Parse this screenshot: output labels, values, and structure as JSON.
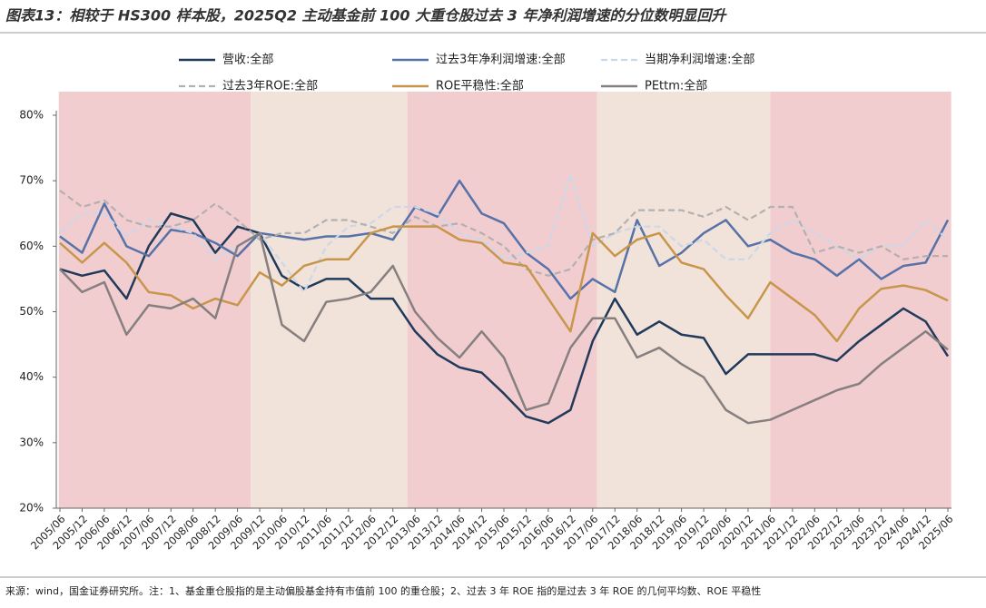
{
  "chart_data": {
    "type": "line",
    "title": "图表13：相较于 HS300 样本股，2025Q2 主动基金前 100 大重仓股过去 3 年净利润增速的分位数明显回升",
    "source": "来源：wind，国金证券研究所。注：1、基金重仓股指的是主动偏股基金持有市值前 100 的重仓股；2、过去 3 年 ROE 指的是过去 3 年 ROE 的几何平均数、ROE 平稳性",
    "categories": [
      "2005/06",
      "2005/12",
      "2006/06",
      "2006/12",
      "2007/06",
      "2007/12",
      "2008/06",
      "2008/12",
      "2009/06",
      "2009/12",
      "2010/06",
      "2010/12",
      "2011/06",
      "2011/12",
      "2012/06",
      "2012/12",
      "2013/06",
      "2013/12",
      "2014/06",
      "2014/12",
      "2015/06",
      "2015/12",
      "2016/06",
      "2016/12",
      "2017/06",
      "2017/12",
      "2018/06",
      "2018/12",
      "2019/06",
      "2019/12",
      "2020/06",
      "2020/12",
      "2021/06",
      "2021/12",
      "2022/06",
      "2022/12",
      "2023/06",
      "2023/12",
      "2024/06",
      "2024/12",
      "2025/06"
    ],
    "ylim": [
      20,
      80
    ],
    "yticks": [
      {
        "value": 20,
        "label": "20%"
      },
      {
        "value": 30,
        "label": "30%"
      },
      {
        "value": 40,
        "label": "40%"
      },
      {
        "value": 50,
        "label": "50%"
      },
      {
        "value": 60,
        "label": "60%"
      },
      {
        "value": 70,
        "label": "70%"
      },
      {
        "value": 80,
        "label": "80%"
      }
    ],
    "series": [
      {
        "name": "营收:全部",
        "color": "#1f3a5a",
        "dash": false,
        "values": [
          56.5,
          55.5,
          56.3,
          52,
          60,
          65,
          64,
          59,
          63,
          62,
          55.5,
          53.5,
          55,
          55,
          52,
          52,
          47,
          43.5,
          41.5,
          40.7,
          37.5,
          34,
          33,
          35,
          45.5,
          52,
          46.5,
          48.5,
          46.5,
          46,
          40.5,
          43.5,
          43.5,
          43.5,
          43.5,
          42.5,
          45.5,
          48,
          50.5,
          48.5,
          43.2
        ]
      },
      {
        "name": "过去3年净利润增速:全部",
        "color": "#5672a8",
        "dash": false,
        "values": [
          61.5,
          59,
          66.5,
          60,
          58.5,
          62.5,
          62,
          60.5,
          58.5,
          62,
          61.5,
          61,
          61.5,
          61.5,
          62,
          61,
          66,
          64.5,
          70,
          65,
          63.5,
          59,
          56.5,
          52,
          55,
          53,
          64,
          57,
          59,
          62,
          64,
          60,
          61,
          59,
          58,
          55.5,
          58,
          55,
          57,
          57.5,
          64
        ]
      },
      {
        "name": "当期净利润增速:全部",
        "color": "#c9d8ea",
        "dash": true,
        "values": [
          62,
          65,
          65,
          61.5,
          64,
          63,
          62,
          58,
          60,
          62,
          57.5,
          53,
          60,
          63,
          63.5,
          66,
          66,
          65,
          62,
          61,
          58,
          59,
          60,
          71,
          60,
          62,
          63,
          63,
          60,
          61,
          58,
          58,
          62,
          64,
          62,
          60,
          58,
          60,
          60,
          64,
          61
        ]
      },
      {
        "name": "过去3年ROE:全部",
        "color": "#b3b0b0",
        "dash": true,
        "values": [
          68.5,
          66,
          67,
          64,
          63,
          63,
          64,
          66.5,
          64,
          61,
          62,
          62,
          64,
          64,
          63,
          62,
          64.5,
          63,
          63.5,
          62,
          60,
          56.5,
          55.5,
          56.5,
          61,
          62,
          65.5,
          65.5,
          65.5,
          64.5,
          66,
          64,
          66,
          66,
          59,
          60,
          59,
          60,
          58,
          58.5,
          58.5
        ]
      },
      {
        "name": "ROE平稳性:全部",
        "color": "#c8964b",
        "dash": false,
        "values": [
          60.5,
          57.5,
          60.5,
          57.5,
          53,
          52.5,
          50.5,
          52,
          51,
          56,
          54,
          57,
          58,
          58,
          62,
          63,
          63,
          63,
          61,
          60.5,
          57.5,
          57,
          52,
          47,
          62,
          58.5,
          61,
          62,
          57.5,
          56.5,
          52.5,
          49,
          54.5,
          52,
          49.5,
          45.5,
          50.5,
          53.5,
          54,
          53.3,
          51.7
        ]
      },
      {
        "name": "PEttm:全部",
        "color": "#857f7f",
        "dash": false,
        "values": [
          56.5,
          53,
          54.5,
          46.5,
          51,
          50.5,
          52,
          49,
          60,
          62,
          48,
          45.5,
          51.5,
          52,
          53,
          57,
          50,
          46,
          43,
          47,
          43,
          35,
          36,
          44.5,
          49,
          49,
          43,
          44.5,
          42,
          40,
          35,
          33,
          33.5,
          35,
          36.5,
          38,
          39,
          42,
          44.5,
          47,
          44.2
        ]
      }
    ]
  }
}
